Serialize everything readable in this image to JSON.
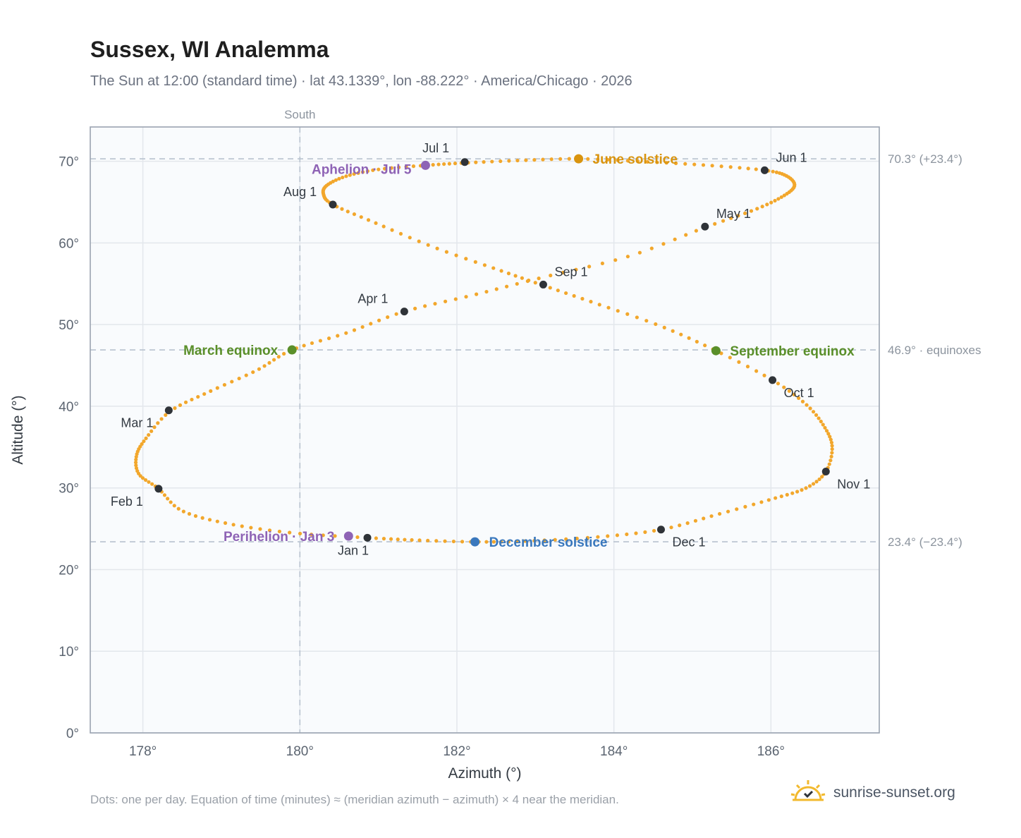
{
  "header": {
    "title": "Sussex, WI Analemma",
    "subtitle": "The Sun at 12:00 (standard time) · lat 43.1339°, lon -88.222° · America/Chicago · 2026"
  },
  "footer": {
    "note": "Dots: one per day. Equation of time (minutes) ≈ (meridian azimuth − azimuth) × 4 near the meridian.",
    "brand": "sunrise-sunset.org",
    "brand_icon": "sun-logo-icon"
  },
  "colors": {
    "curve": "#f2a72c",
    "month_marker": "#2f3338",
    "june_solstice": "#d9940f",
    "equinox": "#5a8f2a",
    "december_solstice": "#3a78bd",
    "apsis": "#8e63b5",
    "grid": "#e3e7ec",
    "reference_line": "#b8c2cf",
    "frame": "#9aa3b0"
  },
  "chart_data": {
    "type": "scatter",
    "title": "Sussex, WI Analemma",
    "xlabel": "Azimuth (°)",
    "ylabel": "Altitude (°)",
    "xlim": [
      177.33,
      187.38
    ],
    "ylim": [
      0,
      74.2
    ],
    "x_ticks": [
      "178°",
      "180°",
      "182°",
      "184°",
      "186°"
    ],
    "y_ticks": [
      "0°",
      "10°",
      "20°",
      "30°",
      "40°",
      "50°",
      "60°",
      "70°"
    ],
    "grid": true,
    "meridian": {
      "x": 180,
      "label": "South"
    },
    "reference_lines": [
      {
        "y": 70.3,
        "label": "70.3° (+23.4°)"
      },
      {
        "y": 46.9,
        "label": "46.9° · equinoxes"
      },
      {
        "y": 23.4,
        "label": "23.4° (−23.4°)"
      }
    ],
    "daily_path": [
      [
        180.86,
        23.9
      ],
      [
        179.9,
        24.5
      ],
      [
        179.1,
        25.6
      ],
      [
        178.5,
        27.2
      ],
      [
        178.2,
        29.9
      ],
      [
        177.95,
        31.7
      ],
      [
        177.92,
        34.0
      ],
      [
        178.05,
        36.2
      ],
      [
        178.35,
        39.4
      ],
      [
        178.85,
        41.8
      ],
      [
        179.45,
        44.4
      ],
      [
        179.9,
        46.9
      ],
      [
        180.6,
        49.0
      ],
      [
        181.33,
        51.6
      ],
      [
        182.2,
        53.6
      ],
      [
        183.1,
        55.8
      ],
      [
        184.2,
        58.4
      ],
      [
        185.16,
        61.9
      ],
      [
        185.8,
        64.1
      ],
      [
        186.15,
        65.7
      ],
      [
        186.3,
        67.0
      ],
      [
        186.2,
        68.2
      ],
      [
        185.92,
        68.9
      ],
      [
        185.2,
        69.5
      ],
      [
        184.4,
        69.95
      ],
      [
        183.55,
        70.3
      ],
      [
        182.8,
        70.1
      ],
      [
        182.1,
        69.8
      ],
      [
        181.6,
        69.5
      ],
      [
        181.0,
        69.0
      ],
      [
        180.6,
        68.2
      ],
      [
        180.35,
        67.1
      ],
      [
        180.3,
        66.0
      ],
      [
        180.42,
        64.7
      ],
      [
        180.95,
        62.5
      ],
      [
        181.7,
        59.5
      ],
      [
        182.5,
        56.8
      ],
      [
        183.1,
        54.8
      ],
      [
        183.8,
        52.5
      ],
      [
        184.6,
        49.8
      ],
      [
        185.3,
        46.8
      ],
      [
        186.02,
        43.2
      ],
      [
        186.45,
        40.2
      ],
      [
        186.68,
        37.5
      ],
      [
        186.78,
        35.0
      ],
      [
        186.7,
        32.0
      ],
      [
        186.45,
        30.0
      ],
      [
        186.0,
        28.6
      ],
      [
        185.3,
        26.7
      ],
      [
        184.6,
        24.9
      ],
      [
        183.8,
        24.0
      ],
      [
        182.9,
        23.5
      ],
      [
        182.23,
        23.4
      ],
      [
        181.5,
        23.6
      ],
      [
        180.86,
        23.9
      ]
    ],
    "month_markers": [
      {
        "label": "Jan 1",
        "x": 180.86,
        "y": 23.9
      },
      {
        "label": "Feb 1",
        "x": 178.2,
        "y": 29.9
      },
      {
        "label": "Mar 1",
        "x": 178.33,
        "y": 39.5
      },
      {
        "label": "Apr 1",
        "x": 181.33,
        "y": 51.6
      },
      {
        "label": "May 1",
        "x": 185.16,
        "y": 62.0
      },
      {
        "label": "Jun 1",
        "x": 185.92,
        "y": 68.9
      },
      {
        "label": "Jul 1",
        "x": 182.1,
        "y": 69.9
      },
      {
        "label": "Aug 1",
        "x": 180.42,
        "y": 64.7
      },
      {
        "label": "Sep 1",
        "x": 183.1,
        "y": 54.9
      },
      {
        "label": "Oct 1",
        "x": 186.02,
        "y": 43.2
      },
      {
        "label": "Nov 1",
        "x": 186.7,
        "y": 32.0
      },
      {
        "label": "Dec 1",
        "x": 184.6,
        "y": 24.9
      }
    ],
    "events": [
      {
        "label": "June solstice",
        "x": 183.55,
        "y": 70.3,
        "kind": "june_solstice"
      },
      {
        "label": "March equinox",
        "x": 179.9,
        "y": 46.9,
        "kind": "equinox"
      },
      {
        "label": "September equinox",
        "x": 185.3,
        "y": 46.8,
        "kind": "equinox"
      },
      {
        "label": "December solstice",
        "x": 182.23,
        "y": 23.4,
        "kind": "december_solstice"
      },
      {
        "label": "Aphelion · Jul 5",
        "x": 181.6,
        "y": 69.5,
        "kind": "apsis"
      },
      {
        "label": "Perihelion · Jan 3",
        "x": 180.62,
        "y": 24.1,
        "kind": "apsis"
      }
    ]
  }
}
